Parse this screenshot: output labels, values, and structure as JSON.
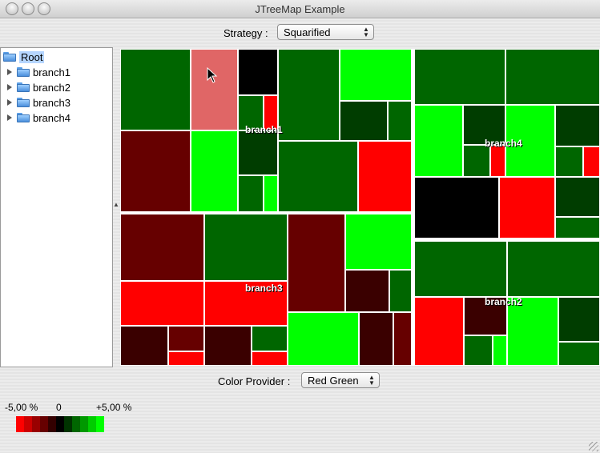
{
  "window": {
    "title": "JTreeMap Example"
  },
  "strategy": {
    "label": "Strategy :",
    "value": "Squarified"
  },
  "tree": {
    "root": "Root",
    "children": [
      "branch1",
      "branch2",
      "branch3",
      "branch4"
    ]
  },
  "treemap": {
    "branch_labels": [
      "branch1",
      "branch4",
      "branch3",
      "branch2"
    ],
    "colors": {
      "bright_green": "#00ff00",
      "green": "#006600",
      "dark_green": "#003d00",
      "black": "#000000",
      "red": "#ff0000",
      "dark_red": "#660000",
      "very_dark_red": "#3a0000",
      "highlight": "#e06666"
    }
  },
  "color_provider": {
    "label": "Color Provider :",
    "value": "Red Green"
  },
  "legend": {
    "min": "-5,00 %",
    "zero": "0",
    "max": "+5,00 %",
    "colors": [
      "#ff0000",
      "#cc0000",
      "#990000",
      "#660000",
      "#330000",
      "#000000",
      "#003300",
      "#006600",
      "#009900",
      "#00cc00",
      "#00ff00"
    ]
  }
}
